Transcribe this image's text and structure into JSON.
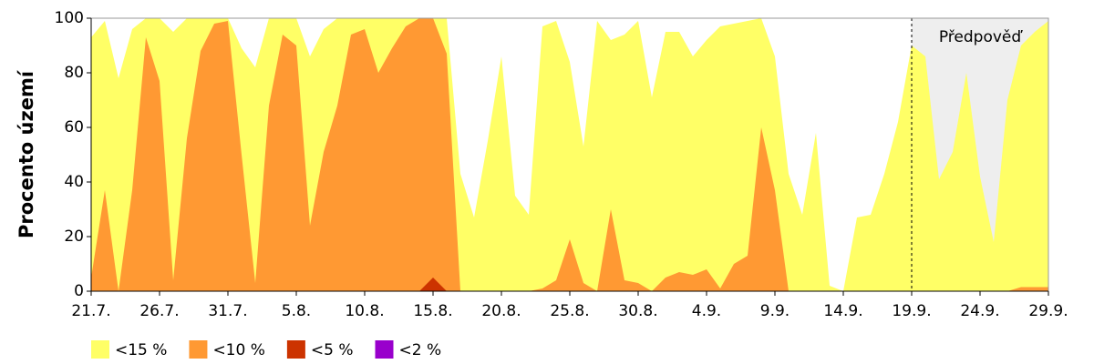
{
  "chart_data": {
    "type": "area",
    "overlay": true,
    "ylabel": "Procento území",
    "categories": [
      "21.7.",
      null,
      null,
      null,
      null,
      "26.7.",
      null,
      null,
      null,
      null,
      "31.7.",
      null,
      null,
      null,
      null,
      "5.8.",
      null,
      null,
      null,
      null,
      "10.8.",
      null,
      null,
      null,
      null,
      "15.8.",
      null,
      null,
      null,
      null,
      "20.8.",
      null,
      null,
      null,
      null,
      "25.8.",
      null,
      null,
      null,
      null,
      "30.8.",
      null,
      null,
      null,
      null,
      "4.9.",
      null,
      null,
      null,
      null,
      "9.9.",
      null,
      null,
      null,
      null,
      "14.9.",
      null,
      null,
      null,
      null,
      "19.9.",
      null,
      null,
      null,
      null,
      "24.9.",
      null,
      null,
      null,
      null,
      "29.9."
    ],
    "series": [
      {
        "name": "<15 %",
        "color": "#ffff66",
        "values": [
          93,
          99,
          78,
          96,
          100,
          100,
          95,
          100,
          100,
          100,
          100,
          89,
          82,
          100,
          100,
          100,
          86,
          96,
          100,
          100,
          100,
          100,
          100,
          100,
          100,
          100,
          100,
          43,
          27,
          55,
          86,
          35,
          28,
          97,
          99,
          84,
          53,
          99,
          92,
          94,
          99,
          71,
          95,
          95,
          86,
          92,
          97,
          98,
          99,
          100,
          86,
          43,
          28,
          58,
          2,
          0,
          27,
          28,
          43,
          62,
          90,
          86,
          41,
          51,
          80,
          42,
          18,
          70,
          90,
          95,
          99
        ]
      },
      {
        "name": "<10 %",
        "color": "#ff9933",
        "values": [
          5,
          37,
          0,
          37,
          93,
          77,
          4,
          56,
          88,
          98,
          99,
          50,
          3,
          68,
          94,
          90,
          24,
          51,
          68,
          94,
          96,
          80,
          89,
          97,
          100,
          100,
          87,
          0,
          0,
          0,
          0,
          0,
          0,
          1,
          4,
          19,
          3,
          0,
          30,
          4,
          3,
          0,
          5,
          7,
          6,
          8,
          1,
          10,
          13,
          60,
          37,
          0,
          0,
          0,
          0,
          0,
          0,
          0,
          0,
          0,
          0,
          0,
          0,
          0,
          0,
          0,
          0,
          0,
          1.5,
          1.5,
          1.5
        ]
      },
      {
        "name": "<5 %",
        "color": "#cc3300",
        "values": [
          0,
          0,
          0,
          0,
          0,
          0,
          0,
          0,
          0,
          0,
          0,
          0,
          0,
          0,
          0,
          0,
          0,
          0,
          0,
          0,
          0,
          0,
          0,
          0,
          0,
          5,
          0,
          0,
          0,
          0,
          0,
          0,
          0,
          0,
          0,
          0,
          0,
          0,
          0,
          0,
          0,
          0,
          0,
          0,
          0,
          0,
          0,
          0,
          0,
          0,
          0,
          0,
          0,
          0,
          0,
          0,
          0,
          0,
          0,
          0,
          0,
          0,
          0,
          0,
          0,
          0,
          0,
          0,
          0,
          0,
          0
        ]
      },
      {
        "name": "<2 %",
        "color": "#9900cc",
        "values": [
          0,
          0,
          0,
          0,
          0,
          0,
          0,
          0,
          0,
          0,
          0,
          0,
          0,
          0,
          0,
          0,
          0,
          0,
          0,
          0,
          0,
          0,
          0,
          0,
          0,
          0,
          0,
          0,
          0,
          0,
          0,
          0,
          0,
          0,
          0,
          0,
          0,
          0,
          0,
          0,
          0,
          0,
          0,
          0,
          0,
          0,
          0,
          0,
          0,
          0,
          0,
          0,
          0,
          0,
          0,
          0,
          0,
          0,
          0,
          0,
          0,
          0,
          0,
          0,
          0,
          0,
          0,
          0,
          0,
          0,
          0
        ]
      }
    ],
    "ylim": [
      0,
      100
    ],
    "yticks": [
      0,
      20,
      40,
      60,
      80,
      100
    ],
    "forecast": {
      "text": "Předpověď",
      "from": "19.9.",
      "color": "#eeeeee"
    },
    "legend": "bottom-left"
  }
}
